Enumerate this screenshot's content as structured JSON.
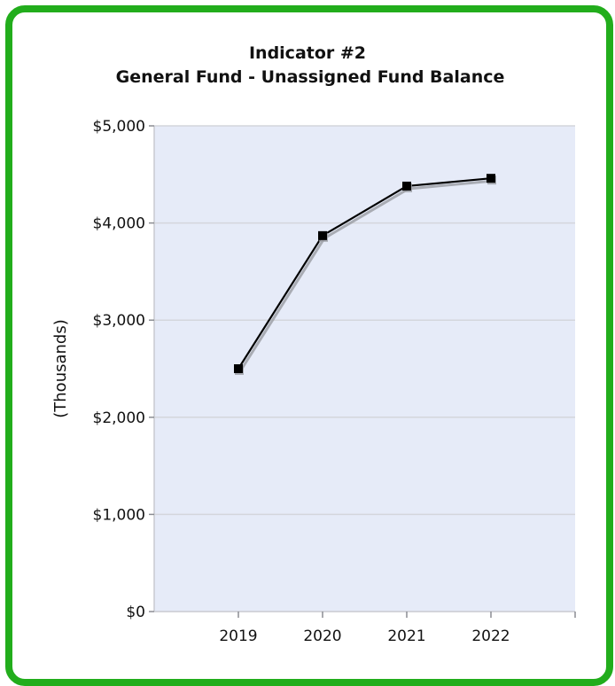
{
  "chart_data": {
    "type": "line",
    "title": "Indicator #2",
    "subtitle": "General Fund - Unassigned Fund Balance",
    "xlabel": "",
    "ylabel": "(Thousands)",
    "categories": [
      "2019",
      "2020",
      "2021",
      "2022"
    ],
    "series": [
      {
        "values": [
          2500,
          3870,
          4380,
          4460
        ]
      }
    ],
    "ylim": [
      0,
      5000
    ],
    "yticks": [
      0,
      1000,
      2000,
      3000,
      4000,
      5000
    ],
    "ytick_labels": [
      "$0",
      "$1,000",
      "$2,000",
      "$3,000",
      "$4,000",
      "$5,000"
    ],
    "grid": true,
    "legend": "none",
    "colors": {
      "frame": "#22ad1c",
      "plot_background": "#e6ebf8",
      "gridline": "#d4d6dc",
      "line": "#000000",
      "shadow": "#9a9ca3",
      "marker": "#000000"
    }
  }
}
